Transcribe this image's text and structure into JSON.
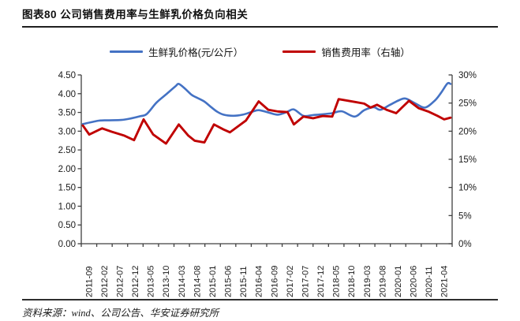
{
  "header": {
    "title": "图表80 公司销售费用率与生鲜乳价格负向相关"
  },
  "footer": {
    "source": "资料来源：wind、公司公告、华安证券研究所"
  },
  "colors": {
    "blue": "#4472C4",
    "red": "#C00000",
    "axis": "#404040",
    "text": "#1a1a1a"
  },
  "chart_data": {
    "type": "line",
    "title": "公司销售费用率与生鲜乳价格负向相关",
    "x_unit": "month index counted from 2011-09",
    "x_range": [
      "2011-09",
      "2021-04"
    ],
    "x_tick_labels": [
      "2011-09",
      "2012-02",
      "2012-07",
      "2012-12",
      "2013-05",
      "2013-10",
      "2014-03",
      "2014-08",
      "2015-01",
      "2015-06",
      "2015-11",
      "2016-04",
      "2016-09",
      "2017-02",
      "2017-07",
      "2017-12",
      "2018-05",
      "2018-10",
      "2019-03",
      "2019-08",
      "2020-01",
      "2020-06",
      "2020-11",
      "2021-04"
    ],
    "left_axis": {
      "min": 0,
      "max": 4.5,
      "step": 0.5,
      "tick_labels": [
        "0.00",
        "0.50",
        "1.00",
        "1.50",
        "2.00",
        "2.50",
        "3.00",
        "3.50",
        "4.00",
        "4.50"
      ]
    },
    "right_axis": {
      "min": 0,
      "max": 30,
      "step": 5,
      "tick_labels": [
        "0%",
        "5%",
        "10%",
        "15%",
        "20%",
        "25%",
        "30%"
      ]
    },
    "grid": "none",
    "legend_position": "top",
    "series": [
      {
        "name": "生鲜乳价格(元/公斤）",
        "axis": "left",
        "color": "#4472C4",
        "style": "smooth",
        "points": [
          [
            0,
            3.19
          ],
          [
            5,
            3.28
          ],
          [
            8,
            3.29
          ],
          [
            12,
            3.3
          ],
          [
            15,
            3.34
          ],
          [
            18,
            3.4
          ],
          [
            20,
            3.46
          ],
          [
            23,
            3.76
          ],
          [
            26,
            3.98
          ],
          [
            29,
            4.2
          ],
          [
            30,
            4.26
          ],
          [
            32,
            4.13
          ],
          [
            34,
            3.97
          ],
          [
            36,
            3.88
          ],
          [
            38,
            3.79
          ],
          [
            40,
            3.65
          ],
          [
            42,
            3.52
          ],
          [
            44,
            3.44
          ],
          [
            47,
            3.41
          ],
          [
            50,
            3.44
          ],
          [
            53,
            3.52
          ],
          [
            55,
            3.56
          ],
          [
            58,
            3.5
          ],
          [
            61,
            3.44
          ],
          [
            64,
            3.52
          ],
          [
            66,
            3.58
          ],
          [
            69,
            3.41
          ],
          [
            72,
            3.43
          ],
          [
            75,
            3.45
          ],
          [
            78,
            3.48
          ],
          [
            81,
            3.53
          ],
          [
            85,
            3.39
          ],
          [
            88,
            3.56
          ],
          [
            91,
            3.64
          ],
          [
            93,
            3.57
          ],
          [
            96,
            3.7
          ],
          [
            99,
            3.83
          ],
          [
            101,
            3.87
          ],
          [
            104,
            3.74
          ],
          [
            107,
            3.63
          ],
          [
            110,
            3.81
          ],
          [
            112,
            4.02
          ],
          [
            114,
            4.27
          ],
          [
            115,
            4.26
          ]
        ]
      },
      {
        "name": "销售费用率（右轴）",
        "axis": "right",
        "color": "#C00000",
        "style": "straight",
        "points": [
          [
            0,
            21.0
          ],
          [
            2,
            19.4
          ],
          [
            6,
            20.5
          ],
          [
            9,
            19.9
          ],
          [
            13,
            19.2
          ],
          [
            16,
            18.4
          ],
          [
            19,
            22.1
          ],
          [
            22,
            19.4
          ],
          [
            24,
            18.6
          ],
          [
            26,
            17.8
          ],
          [
            30,
            21.2
          ],
          [
            33,
            19.2
          ],
          [
            35,
            18.3
          ],
          [
            38,
            18.0
          ],
          [
            41,
            21.2
          ],
          [
            44,
            20.3
          ],
          [
            46,
            19.8
          ],
          [
            51,
            21.9
          ],
          [
            55,
            25.3
          ],
          [
            58,
            23.8
          ],
          [
            61,
            23.5
          ],
          [
            64,
            23.4
          ],
          [
            66,
            21.2
          ],
          [
            69,
            22.6
          ],
          [
            72,
            22.3
          ],
          [
            75,
            22.7
          ],
          [
            78,
            22.6
          ],
          [
            80,
            25.7
          ],
          [
            85,
            25.2
          ],
          [
            88,
            24.9
          ],
          [
            90,
            24.2
          ],
          [
            92,
            24.7
          ],
          [
            95,
            23.8
          ],
          [
            98,
            23.2
          ],
          [
            102,
            25.4
          ],
          [
            105,
            24.1
          ],
          [
            108,
            23.5
          ],
          [
            111,
            22.7
          ],
          [
            113,
            22.1
          ],
          [
            115,
            22.4
          ]
        ]
      }
    ]
  }
}
